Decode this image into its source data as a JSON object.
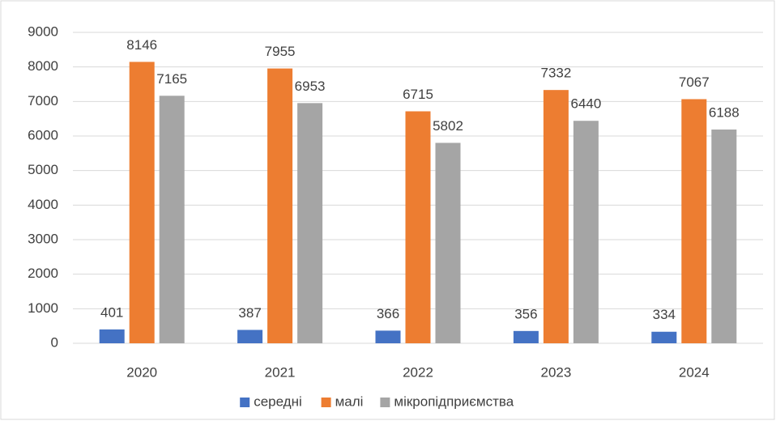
{
  "chart_data": {
    "type": "bar",
    "categories": [
      "2020",
      "2021",
      "2022",
      "2023",
      "2024"
    ],
    "series": [
      {
        "name": "середні",
        "color": "#4472c4",
        "values": [
          401,
          387,
          366,
          356,
          334
        ]
      },
      {
        "name": "малі",
        "color": "#ed7d31",
        "values": [
          8146,
          7955,
          6715,
          7332,
          7067
        ]
      },
      {
        "name": "мікропідприємства",
        "color": "#a5a5a5",
        "values": [
          7165,
          6953,
          5802,
          6440,
          6188
        ]
      }
    ],
    "ylim": [
      0,
      9000
    ],
    "yticks": [
      0,
      1000,
      2000,
      3000,
      4000,
      5000,
      6000,
      7000,
      8000,
      9000
    ],
    "grid": true,
    "legend": "bottom"
  }
}
